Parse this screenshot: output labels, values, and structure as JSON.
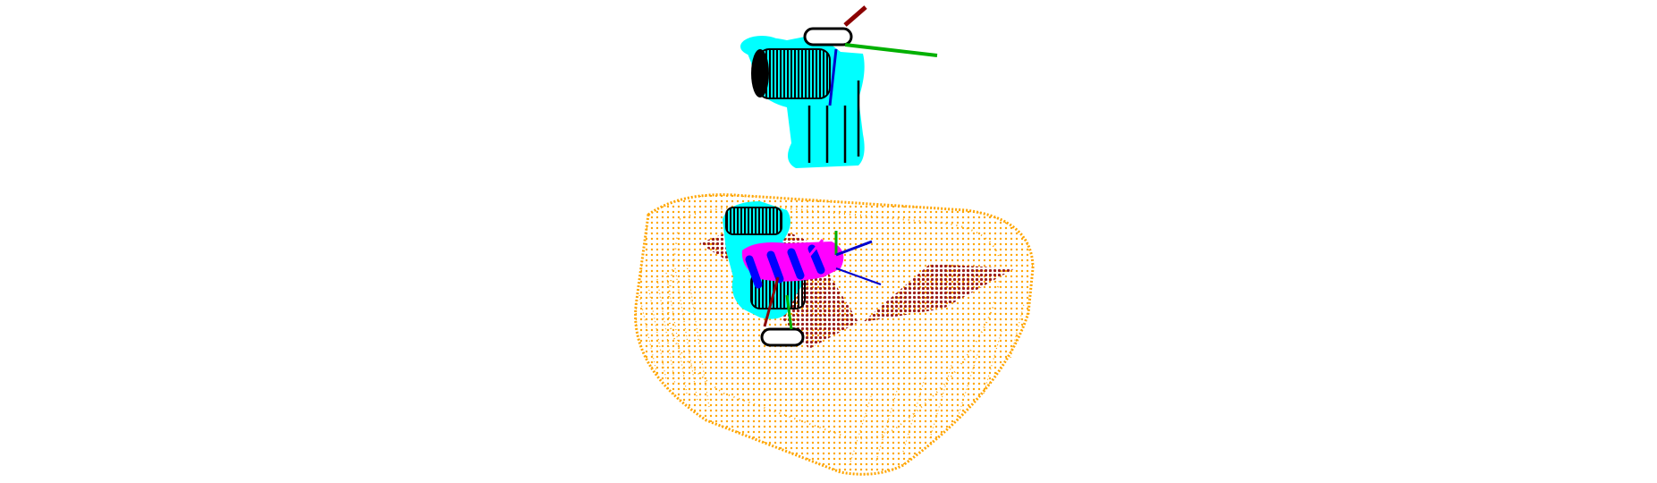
{
  "scene": {
    "background": "#ffffff",
    "colors": {
      "container": "#ffa500",
      "grasp_region": "#9b1c1c",
      "gripper_surface": "#00ffff",
      "gripper_mesh": "#000000",
      "contact_points": "#ff00ff",
      "axis_x": "#8b0000",
      "axis_y": "#00b000",
      "axis_z": "#0000cc",
      "contact_axis": "#0000ff"
    },
    "objects": [
      {
        "name": "container-point-cloud",
        "kind": "rounded-box-points"
      },
      {
        "name": "grasp-region-points",
        "kind": "planar-patch-points"
      },
      {
        "name": "upper-gripper-model",
        "kind": "gripper"
      },
      {
        "name": "lower-gripper-model",
        "kind": "gripper"
      },
      {
        "name": "contact-points",
        "kind": "point-cluster"
      },
      {
        "name": "coordinate-frames",
        "kind": "axis-triads"
      }
    ]
  }
}
